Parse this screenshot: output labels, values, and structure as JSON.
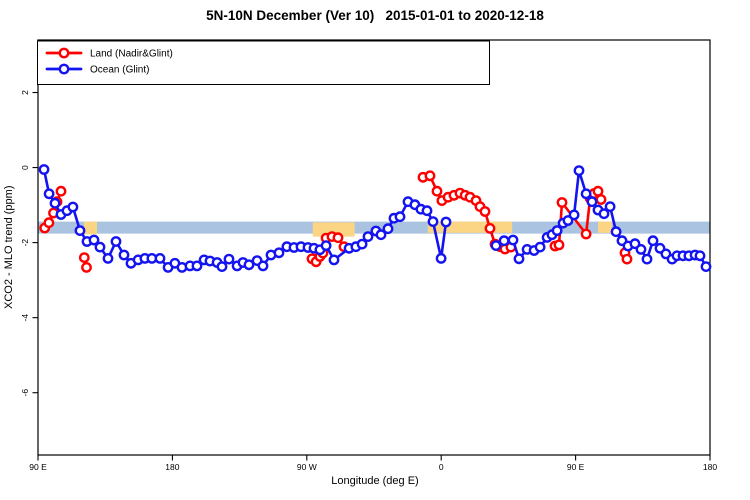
{
  "title": "5N-10N December (Ver 10)   2015-01-01 to 2020-12-18",
  "chart_data": {
    "type": "line",
    "title": "5N-10N December (Ver 10)   2015-01-01 to 2020-12-18",
    "xlabel": "Longitude (deg E)",
    "ylabel": "XCO2 - MLO trend (ppm)",
    "xlim": [
      90,
      540
    ],
    "ylim": [
      -7.66,
      3.4
    ],
    "grid": false,
    "legend_position": "top-left",
    "x_ticks": [
      {
        "v": 90,
        "label": "90 E"
      },
      {
        "v": 180,
        "label": "180"
      },
      {
        "v": 270,
        "label": "90 W"
      },
      {
        "v": 360,
        "label": "0"
      },
      {
        "v": 450,
        "label": "90 E"
      },
      {
        "v": 540,
        "label": "180"
      }
    ],
    "y_ticks": [
      {
        "v": 2,
        "label": "2"
      },
      {
        "v": 0,
        "label": "0"
      },
      {
        "v": -2,
        "label": "-2"
      },
      {
        "v": -4,
        "label": "-4"
      },
      {
        "v": -6,
        "label": "-6"
      }
    ],
    "bands": [
      {
        "name": "ocean-reference-band",
        "color": "#A9C3E1",
        "x_from": 90,
        "x_to": 540,
        "y_from": -1.76,
        "y_to": -1.44
      },
      {
        "name": "land-reference-band-1",
        "color": "#FBD584",
        "x_from": 120.8,
        "x_to": 129.5,
        "y_from": -1.78,
        "y_to": -1.44
      },
      {
        "name": "land-reference-band-2",
        "color": "#FBD584",
        "x_from": 274,
        "x_to": 302,
        "y_from": -1.84,
        "y_to": -1.46
      },
      {
        "name": "land-reference-band-3",
        "color": "#FBD584",
        "x_from": 351,
        "x_to": 407.5,
        "y_from": -1.74,
        "y_to": -1.44
      },
      {
        "name": "land-reference-band-4",
        "color": "#FBD584",
        "x_from": 465,
        "x_to": 474.3,
        "y_from": -1.74,
        "y_to": -1.44
      }
    ],
    "series": [
      {
        "name": "Land (Nadir&Glint)",
        "color": "#FF0000",
        "segments": [
          [
            [
              94.5,
              -1.61
            ],
            [
              97.3,
              -1.47
            ],
            [
              100.4,
              -1.21
            ],
            [
              102.7,
              -0.91
            ],
            [
              105.4,
              -0.63
            ]
          ],
          [
            [
              121,
              -2.4
            ],
            [
              122.5,
              -2.66
            ]
          ],
          [
            [
              273.5,
              -2.43
            ],
            [
              276.2,
              -2.51
            ],
            [
              278.8,
              -2.37
            ],
            [
              280.8,
              -2.28
            ],
            [
              282.9,
              -1.88
            ],
            [
              286.9,
              -1.84
            ],
            [
              290.9,
              -1.87
            ],
            [
              294.9,
              -2.11
            ]
          ],
          [
            [
              347.8,
              -0.26
            ],
            [
              352.5,
              -0.22
            ],
            [
              357.2,
              -0.63
            ],
            [
              360.5,
              -0.88
            ],
            [
              364.6,
              -0.79
            ],
            [
              368.6,
              -0.74
            ],
            [
              372.6,
              -0.68
            ],
            [
              376,
              -0.74
            ],
            [
              379.3,
              -0.79
            ],
            [
              383.3,
              -0.88
            ],
            [
              386,
              -1.04
            ],
            [
              389.3,
              -1.17
            ],
            [
              392.7,
              -1.62
            ],
            [
              396,
              -2.04
            ],
            [
              399.4,
              -2.11
            ],
            [
              402.7,
              -2.17
            ],
            [
              406.7,
              -2.12
            ]
          ],
          [
            [
              436.2,
              -2.09
            ],
            [
              438.9,
              -2.06
            ],
            [
              440.9,
              -0.93
            ],
            [
              457,
              -1.77
            ],
            [
              459.7,
              -0.82
            ],
            [
              462.3,
              -0.69
            ],
            [
              465,
              -0.63
            ],
            [
              467,
              -0.85
            ]
          ],
          [
            [
              483.1,
              -2.27
            ],
            [
              484.4,
              -2.44
            ]
          ]
        ]
      },
      {
        "name": "Ocean (Glint)",
        "color": "#1414F0",
        "segments": [
          [
            [
              94,
              -0.05
            ],
            [
              97.4,
              -0.7
            ],
            [
              101.4,
              -0.95
            ],
            [
              105.4,
              -1.25
            ],
            [
              109.4,
              -1.15
            ],
            [
              113.4,
              -1.05
            ],
            [
              118.1,
              -1.68
            ],
            [
              122.8,
              -1.97
            ],
            [
              127.5,
              -1.93
            ],
            [
              131.5,
              -2.12
            ],
            [
              136.9,
              -2.42
            ],
            [
              142.2,
              -1.97
            ],
            [
              147.6,
              -2.33
            ],
            [
              152.3,
              -2.55
            ],
            [
              157,
              -2.46
            ],
            [
              161.6,
              -2.42
            ],
            [
              166.3,
              -2.42
            ],
            [
              171.7,
              -2.42
            ],
            [
              177.1,
              -2.66
            ],
            [
              181.7,
              -2.55
            ],
            [
              186.4,
              -2.66
            ],
            [
              191.8,
              -2.62
            ],
            [
              196.5,
              -2.62
            ],
            [
              201.2,
              -2.46
            ],
            [
              205.2,
              -2.49
            ],
            [
              209.9,
              -2.53
            ],
            [
              213.2,
              -2.64
            ],
            [
              217.9,
              -2.44
            ],
            [
              223.3,
              -2.62
            ],
            [
              227.3,
              -2.53
            ],
            [
              231.3,
              -2.59
            ],
            [
              236.7,
              -2.48
            ],
            [
              240.7,
              -2.62
            ],
            [
              246,
              -2.33
            ],
            [
              251.4,
              -2.27
            ],
            [
              256.7,
              -2.11
            ],
            [
              261.4,
              -2.13
            ],
            [
              266.1,
              -2.11
            ],
            [
              270.8,
              -2.13
            ],
            [
              274.8,
              -2.15
            ],
            [
              278.8,
              -2.19
            ],
            [
              282.9,
              -2.08
            ],
            [
              288.2,
              -2.46
            ],
            [
              298.3,
              -2.15
            ],
            [
              302.9,
              -2.11
            ],
            [
              307,
              -2.04
            ],
            [
              311,
              -1.84
            ],
            [
              316.3,
              -1.69
            ],
            [
              319.7,
              -1.79
            ],
            [
              324.4,
              -1.63
            ],
            [
              328.4,
              -1.35
            ],
            [
              332.4,
              -1.31
            ],
            [
              337.8,
              -0.91
            ],
            [
              342.4,
              -0.99
            ],
            [
              346.4,
              -1.11
            ],
            [
              350.5,
              -1.15
            ],
            [
              354.5,
              -1.44
            ],
            [
              359.9,
              -2.42
            ],
            [
              363.2,
              -1.45
            ]
          ],
          [
            [
              396.7,
              -2.08
            ],
            [
              402.1,
              -1.95
            ],
            [
              408.1,
              -1.93
            ],
            [
              412.1,
              -2.43
            ],
            [
              417.5,
              -2.18
            ],
            [
              422.2,
              -2.21
            ],
            [
              426.2,
              -2.12
            ],
            [
              430.9,
              -1.86
            ],
            [
              434.2,
              -1.79
            ],
            [
              437.6,
              -1.68
            ],
            [
              441.6,
              -1.48
            ],
            [
              444.9,
              -1.41
            ],
            [
              449,
              -1.26
            ],
            [
              452.3,
              -0.08
            ],
            [
              457,
              -0.7
            ],
            [
              461,
              -0.91
            ],
            [
              465,
              -1.13
            ],
            [
              469,
              -1.23
            ],
            [
              473.1,
              -1.04
            ],
            [
              477.1,
              -1.71
            ],
            [
              481.1,
              -1.95
            ],
            [
              485.1,
              -2.09
            ],
            [
              489.8,
              -2.03
            ],
            [
              493.8,
              -2.18
            ],
            [
              497.8,
              -2.44
            ],
            [
              501.8,
              -1.95
            ],
            [
              506.5,
              -2.15
            ],
            [
              510.5,
              -2.3
            ],
            [
              514.6,
              -2.44
            ],
            [
              517.9,
              -2.35
            ],
            [
              521.9,
              -2.35
            ],
            [
              525.9,
              -2.35
            ],
            [
              530,
              -2.33
            ],
            [
              533.3,
              -2.35
            ],
            [
              537.3,
              -2.64
            ]
          ]
        ]
      }
    ]
  }
}
